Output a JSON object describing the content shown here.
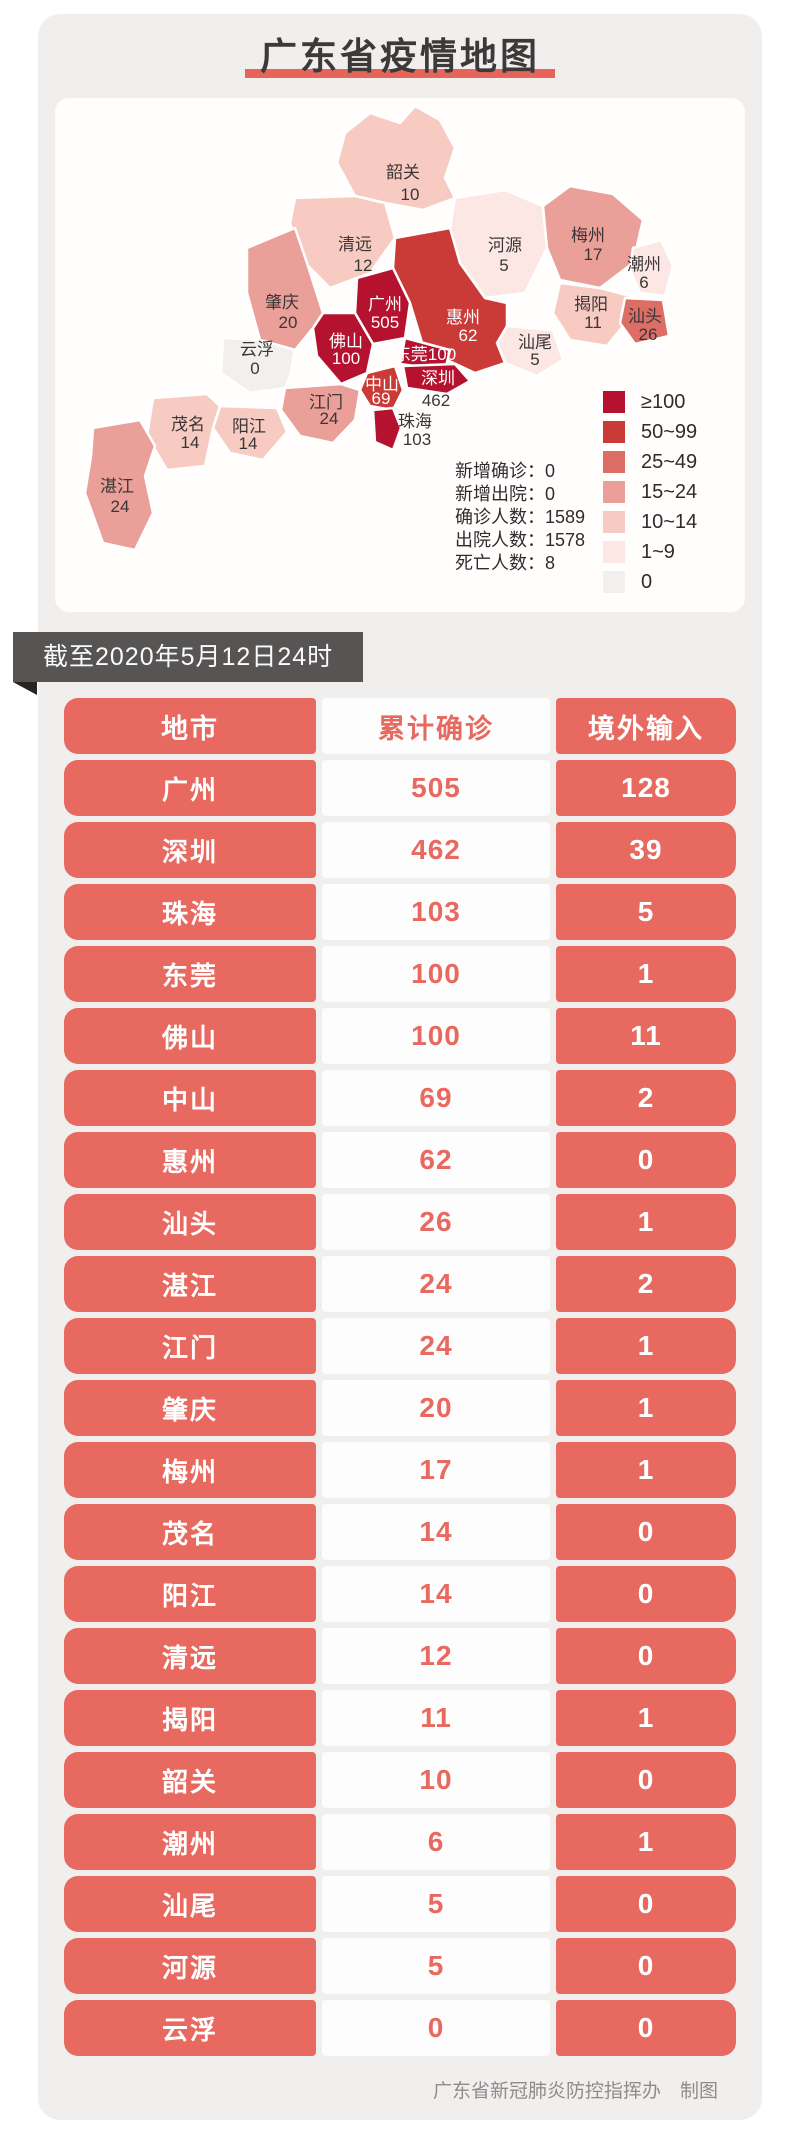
{
  "title": "广东省疫情地图",
  "ribbon": {
    "date_label": "截至2020年5月12日24时"
  },
  "map_card": {
    "stats": [
      "新增确诊：0",
      "新增出院：0",
      "确诊人数：1589",
      "出院人数：1578",
      "死亡人数：8"
    ],
    "legend": [
      {
        "label": "≥100",
        "color": "#b5122f"
      },
      {
        "label": "50~99",
        "color": "#ca3a37"
      },
      {
        "label": "25~49",
        "color": "#dd6e65"
      },
      {
        "label": "15~24",
        "color": "#eb9f99"
      },
      {
        "label": "10~14",
        "color": "#f7cbc2"
      },
      {
        "label": "1~9",
        "color": "#fce7e4"
      },
      {
        "label": "0",
        "color": "#f2f0ed"
      }
    ]
  },
  "accent_colors": {
    "table_red": "#e7695f",
    "title_underline": "#e7645b",
    "ribbon_bg": "#575454"
  },
  "footer_credit": "广东省新冠肺炎防控指挥办　制图",
  "chart_data": [
    {
      "type": "heatmap",
      "subtype": "choropleth-map",
      "title": "广东省疫情地图",
      "value_meaning": "累计确诊人数",
      "legend_bins": [
        "≥100",
        "50~99",
        "25~49",
        "15~24",
        "10~14",
        "1~9",
        "0"
      ],
      "regions": [
        {
          "name": "韶关",
          "value": 10
        },
        {
          "name": "清远",
          "value": 12
        },
        {
          "name": "河源",
          "value": 5
        },
        {
          "name": "梅州",
          "value": 17
        },
        {
          "name": "潮州",
          "value": 6
        },
        {
          "name": "揭阳",
          "value": 11
        },
        {
          "name": "汕头",
          "value": 26
        },
        {
          "name": "汕尾",
          "value": 5
        },
        {
          "name": "惠州",
          "value": 62
        },
        {
          "name": "广州",
          "value": 505
        },
        {
          "name": "佛山",
          "value": 100
        },
        {
          "name": "东莞",
          "value": 100
        },
        {
          "name": "深圳",
          "value": 462
        },
        {
          "name": "中山",
          "value": 69
        },
        {
          "name": "珠海",
          "value": 103
        },
        {
          "name": "江门",
          "value": 24
        },
        {
          "name": "肇庆",
          "value": 20
        },
        {
          "name": "云浮",
          "value": 0
        },
        {
          "name": "阳江",
          "value": 14
        },
        {
          "name": "茂名",
          "value": 14
        },
        {
          "name": "湛江",
          "value": 24
        }
      ],
      "annotations": {
        "new_confirmed": 0,
        "new_discharged": 0,
        "total_confirmed": 1589,
        "total_discharged": 1578,
        "deaths": 8
      }
    },
    {
      "type": "table",
      "columns": [
        "地市",
        "累计确诊",
        "境外输入"
      ],
      "rows": [
        [
          "广州",
          505,
          128
        ],
        [
          "深圳",
          462,
          39
        ],
        [
          "珠海",
          103,
          5
        ],
        [
          "东莞",
          100,
          1
        ],
        [
          "佛山",
          100,
          11
        ],
        [
          "中山",
          69,
          2
        ],
        [
          "惠州",
          62,
          0
        ],
        [
          "汕头",
          26,
          1
        ],
        [
          "湛江",
          24,
          2
        ],
        [
          "江门",
          24,
          1
        ],
        [
          "肇庆",
          20,
          1
        ],
        [
          "梅州",
          17,
          1
        ],
        [
          "茂名",
          14,
          0
        ],
        [
          "阳江",
          14,
          0
        ],
        [
          "清远",
          12,
          0
        ],
        [
          "揭阳",
          11,
          1
        ],
        [
          "韶关",
          10,
          0
        ],
        [
          "潮州",
          6,
          1
        ],
        [
          "汕尾",
          5,
          0
        ],
        [
          "河源",
          5,
          0
        ],
        [
          "云浮",
          0,
          0
        ]
      ]
    }
  ]
}
